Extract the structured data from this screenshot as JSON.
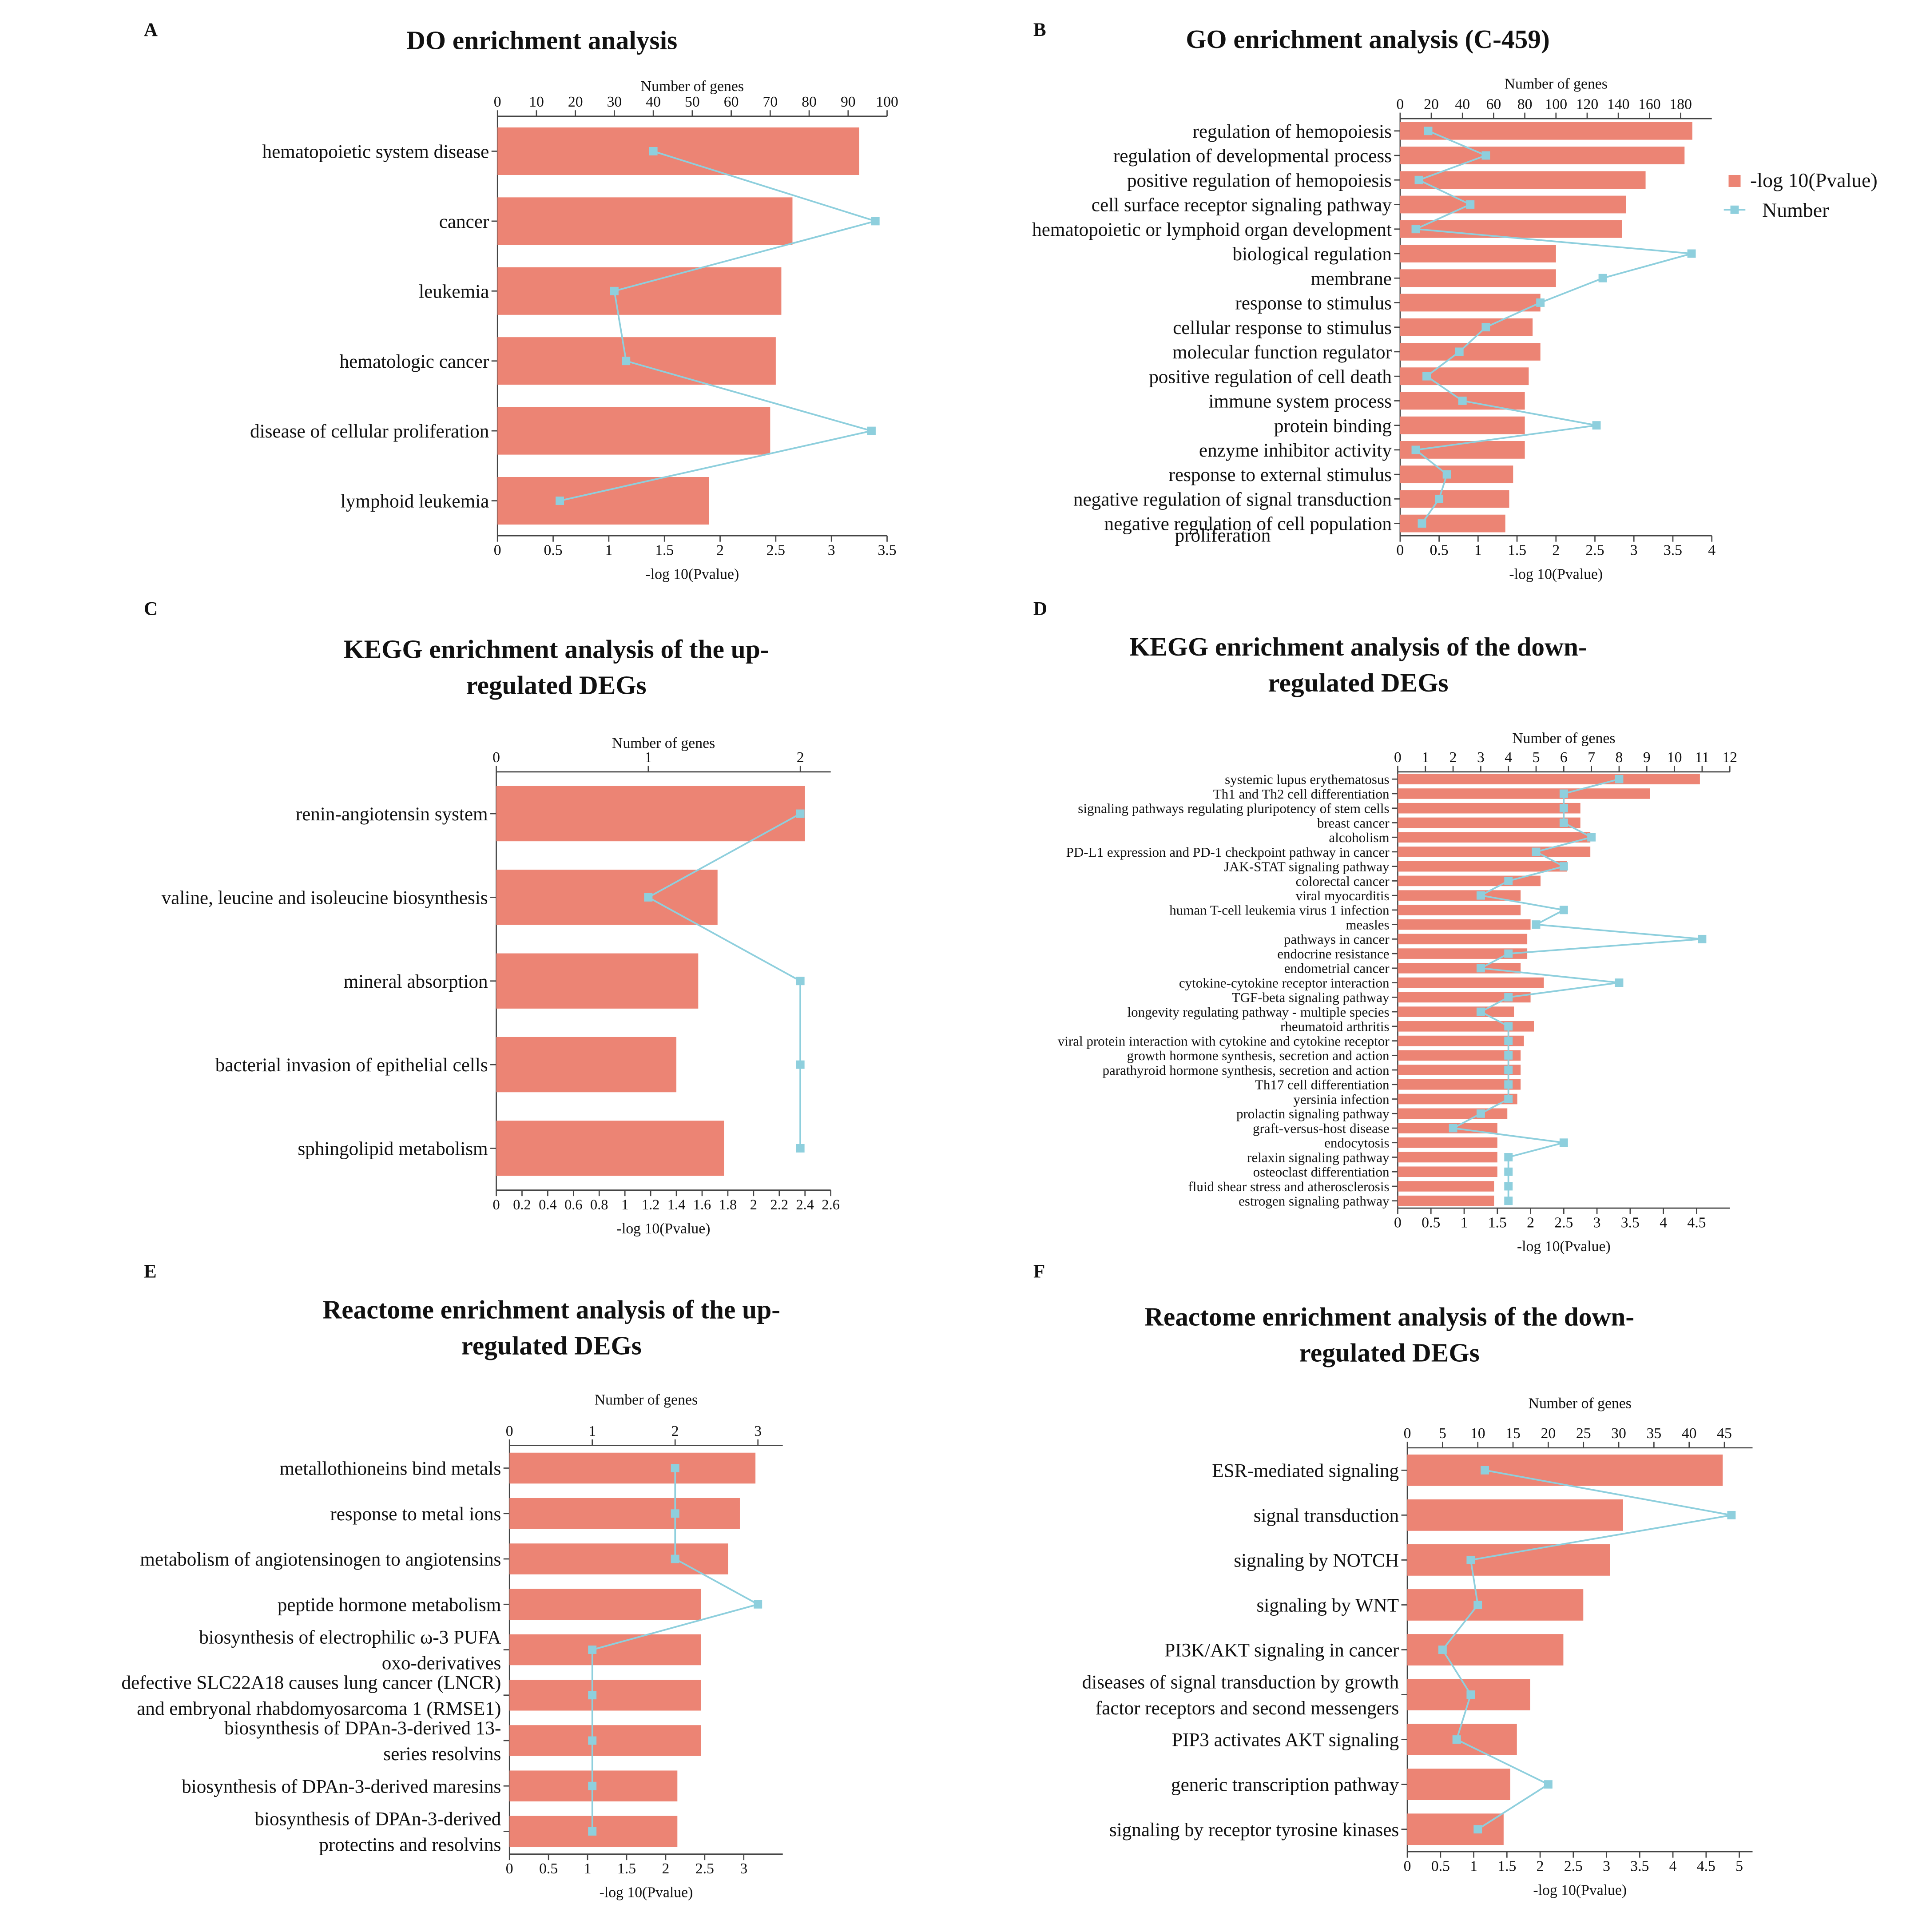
{
  "chart_data": [
    {
      "type": "bar",
      "panel_letter": "A",
      "title": "DO enrichment analysis",
      "title2": "",
      "xlabel": "-log 10(Pvalue)",
      "x2label": "Number of genes",
      "xlim": [
        0,
        3.5
      ],
      "x2lim": [
        0,
        100
      ],
      "xticks": [
        "0",
        "0.5",
        "1",
        "1.5",
        "2",
        "2.5",
        "3",
        "3.5"
      ],
      "x2ticks": [
        "0",
        "10",
        "20",
        "30",
        "40",
        "50",
        "60",
        "70",
        "80",
        "90",
        "100"
      ],
      "categories": [
        "hematopoietic system disease",
        "cancer",
        "leukemia",
        "hematologic cancer",
        "disease of cellular proliferation",
        "lymphoid leukemia"
      ],
      "series": [
        {
          "name": "-log 10(Pvalue)",
          "values": [
            3.25,
            2.65,
            2.55,
            2.5,
            2.45,
            1.9
          ]
        },
        {
          "name": "Number",
          "values": [
            40,
            97,
            30,
            33,
            96,
            16
          ]
        }
      ]
    },
    {
      "type": "bar",
      "panel_letter": "B",
      "title": "GO enrichment analysis (C-459)",
      "title2": "",
      "xlabel": "-log 10(Pvalue)",
      "x2label": "Number of genes",
      "xlim": [
        0,
        4
      ],
      "x2lim": [
        0,
        200
      ],
      "xticks": [
        "0",
        "0.5",
        "1",
        "1.5",
        "2",
        "2.5",
        "3",
        "3.5",
        "4"
      ],
      "x2ticks": [
        "0",
        "20",
        "40",
        "60",
        "80",
        "100",
        "120",
        "140",
        "160",
        "180"
      ],
      "legend": [
        "-log 10(Pvalue)",
        "Number"
      ],
      "categories": [
        "regulation of hemopoiesis",
        "regulation of developmental process",
        "positive regulation of hemopoiesis",
        "cell surface receptor signaling pathway",
        "hematopoietic or lymphoid organ development",
        "biological regulation",
        "membrane",
        "response to stimulus",
        "cellular response to stimulus",
        "molecular function regulator",
        "positive regulation of cell death",
        "immune system process",
        "protein binding",
        "enzyme inhibitor activity",
        "response to external stimulus",
        "negative regulation of signal transduction",
        "negative regulation of cell population proliferation"
      ],
      "series": [
        {
          "name": "-log 10(Pvalue)",
          "values": [
            3.75,
            3.65,
            3.15,
            2.9,
            2.85,
            2.0,
            2.0,
            1.8,
            1.7,
            1.8,
            1.65,
            1.6,
            1.6,
            1.6,
            1.45,
            1.4,
            1.35
          ]
        },
        {
          "name": "Number",
          "values": [
            18,
            55,
            12,
            45,
            10,
            187,
            130,
            90,
            55,
            38,
            17,
            40,
            126,
            10,
            30,
            25,
            14
          ]
        }
      ]
    },
    {
      "type": "bar",
      "panel_letter": "C",
      "title": "KEGG enrichment analysis of the up-",
      "title2": "regulated DEGs",
      "xlabel": "-log 10(Pvalue)",
      "x2label": "Number of genes",
      "xlim": [
        0,
        2.6
      ],
      "x2lim": [
        0,
        2.2
      ],
      "xticks": [
        "0",
        "0.2",
        "0.4",
        "0.6",
        "0.8",
        "1",
        "1.2",
        "1.4",
        "1.6",
        "1.8",
        "2",
        "2.2",
        "2.4",
        "2.6"
      ],
      "x2ticks": [
        "0",
        "1",
        "2"
      ],
      "categories": [
        "renin-angiotensin system",
        "valine, leucine and isoleucine biosynthesis",
        "mineral absorption",
        "bacterial invasion of epithelial cells",
        "sphingolipid metabolism"
      ],
      "series": [
        {
          "name": "-log 10(Pvalue)",
          "values": [
            2.4,
            1.72,
            1.57,
            1.4,
            1.77
          ]
        },
        {
          "name": "Number",
          "values": [
            2,
            1,
            2,
            2,
            2
          ]
        }
      ]
    },
    {
      "type": "bar",
      "panel_letter": "D",
      "title": "KEGG enrichment analysis of the down-",
      "title2": "regulated DEGs",
      "xlabel": "-log 10(Pvalue)",
      "x2label": "Number of genes",
      "xlim": [
        0,
        5
      ],
      "x2lim": [
        0,
        12
      ],
      "xticks": [
        "0",
        "0.5",
        "1",
        "1.5",
        "2",
        "2.5",
        "3",
        "3.5",
        "4",
        "4.5"
      ],
      "x2ticks": [
        "0",
        "1",
        "2",
        "3",
        "4",
        "5",
        "6",
        "7",
        "8",
        "9",
        "10",
        "11",
        "12"
      ],
      "categories": [
        "systemic lupus erythematosus",
        "Th1 and Th2 cell differentiation",
        "signaling pathways regulating pluripotency of stem cells",
        "breast cancer",
        "alcoholism",
        "PD-L1 expression and PD-1 checkpoint pathway in cancer",
        "JAK-STAT signaling pathway",
        "colorectal cancer",
        "viral myocarditis",
        "human T-cell leukemia virus 1 infection",
        "measles",
        "pathways in cancer",
        "endocrine resistance",
        "endometrial cancer",
        "cytokine-cytokine receptor interaction",
        "TGF-beta signaling pathway",
        "longevity regulating pathway - multiple species",
        "rheumatoid arthritis",
        "viral protein interaction with cytokine and cytokine receptor",
        "growth hormone synthesis, secretion and action",
        "parathyroid hormone synthesis, secretion and action",
        "Th17 cell differentiation",
        "yersinia infection",
        "prolactin signaling pathway",
        "graft-versus-host disease",
        "endocytosis",
        "relaxin signaling pathway",
        "osteoclast differentiation",
        "fluid shear stress and atherosclerosis",
        "estrogen signaling pathway"
      ],
      "series": [
        {
          "name": "-log 10(Pvalue)",
          "values": [
            4.55,
            3.8,
            2.75,
            2.75,
            2.9,
            2.9,
            2.55,
            2.15,
            1.85,
            1.85,
            2.0,
            1.95,
            1.95,
            1.85,
            2.2,
            2.0,
            1.75,
            2.05,
            1.9,
            1.85,
            1.85,
            1.85,
            1.8,
            1.65,
            1.5,
            1.5,
            1.5,
            1.5,
            1.45,
            1.45
          ]
        },
        {
          "name": "Number",
          "values": [
            8,
            6,
            6,
            6,
            7,
            5,
            6,
            4,
            3,
            6,
            5,
            11,
            4,
            3,
            8,
            4,
            3,
            4,
            4,
            4,
            4,
            4,
            4,
            3,
            2,
            6,
            4,
            4,
            4,
            4
          ]
        }
      ]
    },
    {
      "type": "bar",
      "panel_letter": "E",
      "title": "Reactome enrichment analysis of the up-",
      "title2": "regulated DEGs",
      "xlabel": "-log 10(Pvalue)",
      "x2label": "Number of genes",
      "xlim": [
        0,
        3.5
      ],
      "x2lim": [
        0,
        3.3
      ],
      "xticks": [
        "0",
        "0.5",
        "1",
        "1.5",
        "2",
        "2.5",
        "3"
      ],
      "x2ticks": [
        "0",
        "1",
        "2",
        "3"
      ],
      "categories": [
        "metallothioneins bind metals",
        "response to metal ions",
        "metabolism of angiotensinogen to angiotensins",
        "peptide hormone metabolism",
        "biosynthesis of electrophilic ω-3 PUFA oxo-derivatives",
        "defective SLC22A18 causes lung cancer (LNCR) and embryonal rhabdomyosarcoma 1 (RMSE1)",
        "biosynthesis of DPAn-3-derived 13-series resolvins",
        "biosynthesis of DPAn-3-derived maresins",
        "biosynthesis of DPAn-3-derived protectins and resolvins"
      ],
      "series": [
        {
          "name": "-log 10(Pvalue)",
          "values": [
            3.15,
            2.95,
            2.8,
            2.45,
            2.45,
            2.45,
            2.45,
            2.15,
            2.15
          ]
        },
        {
          "name": "Number",
          "values": [
            2,
            2,
            2,
            3,
            1,
            1,
            1,
            1,
            1
          ]
        }
      ]
    },
    {
      "type": "bar",
      "panel_letter": "F",
      "title": "Reactome enrichment analysis of the down-",
      "title2": "regulated DEGs",
      "xlabel": "-log 10(Pvalue)",
      "x2label": "Number of genes",
      "xlim": [
        0,
        5.2
      ],
      "x2lim": [
        0,
        49
      ],
      "xticks": [
        "0",
        "0.5",
        "1",
        "1.5",
        "2",
        "2.5",
        "3",
        "3.5",
        "4",
        "4.5",
        "5"
      ],
      "x2ticks": [
        "0",
        "5",
        "10",
        "15",
        "20",
        "25",
        "30",
        "35",
        "40",
        "45"
      ],
      "categories": [
        "ESR-mediated signaling",
        "signal transduction",
        "signaling by NOTCH",
        "signaling by WNT",
        "PI3K/AKT signaling in cancer",
        "diseases of signal transduction by growth factor receptors and second messengers",
        "PIP3 activates AKT signaling",
        "generic transcription pathway",
        "signaling by receptor tyrosine kinases"
      ],
      "series": [
        {
          "name": "-log 10(Pvalue)",
          "values": [
            4.75,
            3.25,
            3.05,
            2.65,
            2.35,
            1.85,
            1.65,
            1.55,
            1.45
          ]
        },
        {
          "name": "Number",
          "values": [
            11,
            46,
            9,
            10,
            5,
            9,
            7,
            20,
            10
          ]
        }
      ]
    }
  ],
  "colors": {
    "bar": "#ec8474",
    "line": "#8ecfdd",
    "axis": "#444444",
    "text": "#111111"
  }
}
